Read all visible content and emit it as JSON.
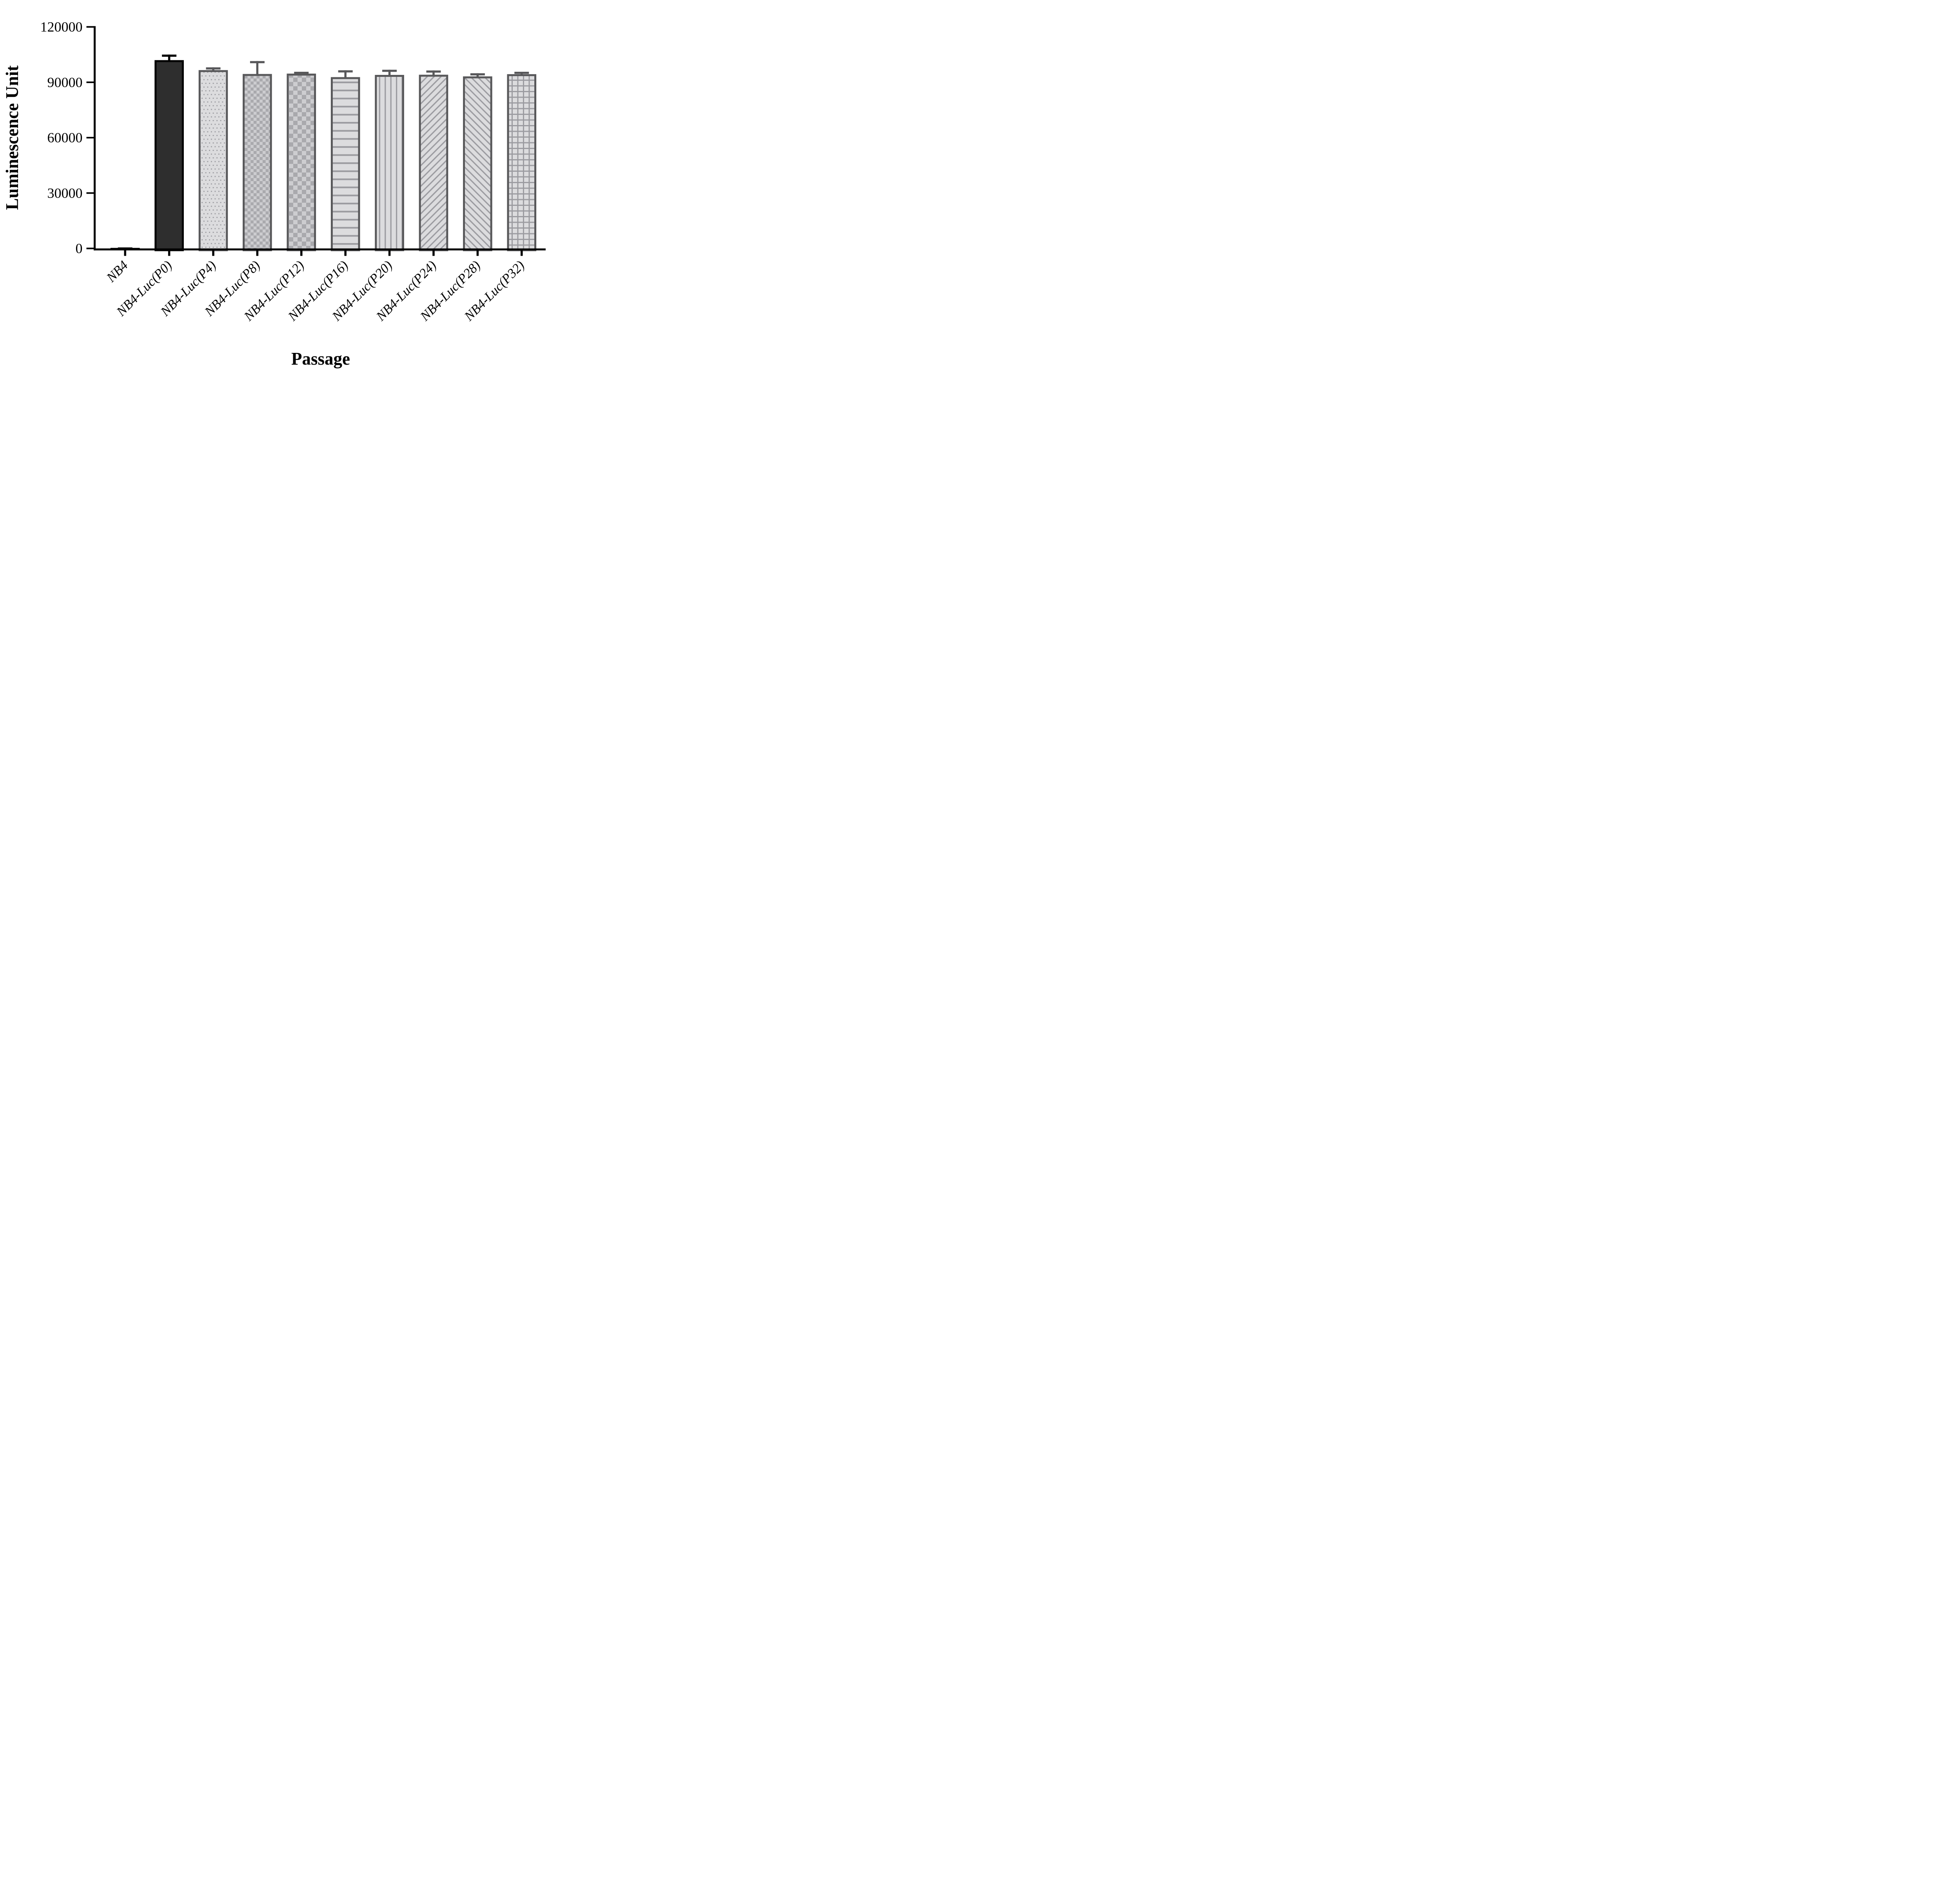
{
  "figure": {
    "background": "#ffffff"
  },
  "chart_data": {
    "type": "bar",
    "title": "",
    "xlabel": "Passage",
    "ylabel": "Luminescence Unit",
    "ylim": [
      0,
      120000
    ],
    "yticks": [
      0,
      30000,
      60000,
      90000,
      120000
    ],
    "ytick_labels": [
      "0",
      "30000",
      "60000",
      "90000",
      "120000"
    ],
    "grid": false,
    "legend_position": "none",
    "categories": [
      "NB4",
      "NB4-Luc(P0)",
      "NB4-Luc(P4)",
      "NB4-Luc(P8)",
      "NB4-Luc(P12)",
      "NB4-Luc(P16)",
      "NB4-Luc(P20)",
      "NB4-Luc(P24)",
      "NB4-Luc(P28)",
      "NB4-Luc(P32)"
    ],
    "series": [
      {
        "name": "Luminescence Unit",
        "values": [
          300,
          102000,
          96600,
          94500,
          94700,
          92800,
          94000,
          94100,
          93200,
          94400
        ],
        "errors_plus": [
          250,
          3000,
          1500,
          7000,
          1000,
          3700,
          2800,
          2300,
          1700,
          1300
        ]
      }
    ],
    "bars": [
      {
        "category": "NB4",
        "pattern": "solid-black",
        "border": "#000000",
        "error_color": "#000000"
      },
      {
        "category": "NB4-Luc(P0)",
        "pattern": "solid-dark",
        "border": "#000000",
        "error_color": "#000000"
      },
      {
        "category": "NB4-Luc(P4)",
        "pattern": "dots",
        "border": "#58585a",
        "error_color": "#58585a"
      },
      {
        "category": "NB4-Luc(P8)",
        "pattern": "checker-fine",
        "border": "#58585a",
        "error_color": "#58585a"
      },
      {
        "category": "NB4-Luc(P12)",
        "pattern": "checker-coarse",
        "border": "#58585a",
        "error_color": "#58585a"
      },
      {
        "category": "NB4-Luc(P16)",
        "pattern": "hlines",
        "border": "#58585a",
        "error_color": "#58585a"
      },
      {
        "category": "NB4-Luc(P20)",
        "pattern": "vlines",
        "border": "#58585a",
        "error_color": "#58585a"
      },
      {
        "category": "NB4-Luc(P24)",
        "pattern": "diag-forward",
        "border": "#58585a",
        "error_color": "#58585a"
      },
      {
        "category": "NB4-Luc(P28)",
        "pattern": "diag-backward",
        "border": "#58585a",
        "error_color": "#58585a"
      },
      {
        "category": "NB4-Luc(P32)",
        "pattern": "grid",
        "border": "#58585a",
        "error_color": "#58585a"
      }
    ],
    "colors": {
      "axis": "#000000",
      "solid_black": "#000000",
      "solid_dark_fill": "#2e2e2e",
      "gray_border": "#58585a",
      "pattern_bg": "#dcdcde",
      "pattern_fg": "#9b9ba0",
      "checker_light": "#cdcdd0",
      "checker_dark": "#a9a9ad"
    }
  }
}
